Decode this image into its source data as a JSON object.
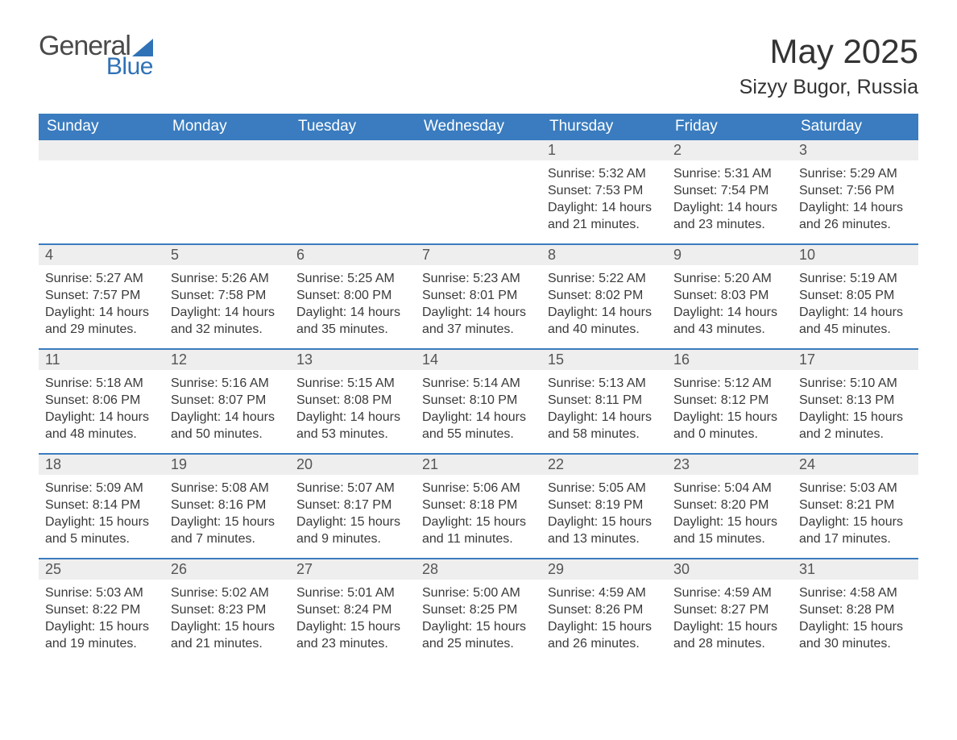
{
  "logo": {
    "text1": "General",
    "text2": "Blue"
  },
  "title": "May 2025",
  "location": "Sizyy Bugor, Russia",
  "colors": {
    "header_bg": "#3a7cbf",
    "header_text": "#ffffff",
    "daynum_bg": "#eeeeee",
    "body_text": "#3a3a3a",
    "accent": "#2f72b6",
    "page_bg": "#ffffff"
  },
  "weekdays": [
    "Sunday",
    "Monday",
    "Tuesday",
    "Wednesday",
    "Thursday",
    "Friday",
    "Saturday"
  ],
  "labels": {
    "sunrise": "Sunrise:",
    "sunset": "Sunset:",
    "daylight": "Daylight:"
  },
  "weeks": [
    [
      null,
      null,
      null,
      null,
      {
        "n": "1",
        "sunrise": "5:32 AM",
        "sunset": "7:53 PM",
        "daylight": "14 hours and 21 minutes."
      },
      {
        "n": "2",
        "sunrise": "5:31 AM",
        "sunset": "7:54 PM",
        "daylight": "14 hours and 23 minutes."
      },
      {
        "n": "3",
        "sunrise": "5:29 AM",
        "sunset": "7:56 PM",
        "daylight": "14 hours and 26 minutes."
      }
    ],
    [
      {
        "n": "4",
        "sunrise": "5:27 AM",
        "sunset": "7:57 PM",
        "daylight": "14 hours and 29 minutes."
      },
      {
        "n": "5",
        "sunrise": "5:26 AM",
        "sunset": "7:58 PM",
        "daylight": "14 hours and 32 minutes."
      },
      {
        "n": "6",
        "sunrise": "5:25 AM",
        "sunset": "8:00 PM",
        "daylight": "14 hours and 35 minutes."
      },
      {
        "n": "7",
        "sunrise": "5:23 AM",
        "sunset": "8:01 PM",
        "daylight": "14 hours and 37 minutes."
      },
      {
        "n": "8",
        "sunrise": "5:22 AM",
        "sunset": "8:02 PM",
        "daylight": "14 hours and 40 minutes."
      },
      {
        "n": "9",
        "sunrise": "5:20 AM",
        "sunset": "8:03 PM",
        "daylight": "14 hours and 43 minutes."
      },
      {
        "n": "10",
        "sunrise": "5:19 AM",
        "sunset": "8:05 PM",
        "daylight": "14 hours and 45 minutes."
      }
    ],
    [
      {
        "n": "11",
        "sunrise": "5:18 AM",
        "sunset": "8:06 PM",
        "daylight": "14 hours and 48 minutes."
      },
      {
        "n": "12",
        "sunrise": "5:16 AM",
        "sunset": "8:07 PM",
        "daylight": "14 hours and 50 minutes."
      },
      {
        "n": "13",
        "sunrise": "5:15 AM",
        "sunset": "8:08 PM",
        "daylight": "14 hours and 53 minutes."
      },
      {
        "n": "14",
        "sunrise": "5:14 AM",
        "sunset": "8:10 PM",
        "daylight": "14 hours and 55 minutes."
      },
      {
        "n": "15",
        "sunrise": "5:13 AM",
        "sunset": "8:11 PM",
        "daylight": "14 hours and 58 minutes."
      },
      {
        "n": "16",
        "sunrise": "5:12 AM",
        "sunset": "8:12 PM",
        "daylight": "15 hours and 0 minutes."
      },
      {
        "n": "17",
        "sunrise": "5:10 AM",
        "sunset": "8:13 PM",
        "daylight": "15 hours and 2 minutes."
      }
    ],
    [
      {
        "n": "18",
        "sunrise": "5:09 AM",
        "sunset": "8:14 PM",
        "daylight": "15 hours and 5 minutes."
      },
      {
        "n": "19",
        "sunrise": "5:08 AM",
        "sunset": "8:16 PM",
        "daylight": "15 hours and 7 minutes."
      },
      {
        "n": "20",
        "sunrise": "5:07 AM",
        "sunset": "8:17 PM",
        "daylight": "15 hours and 9 minutes."
      },
      {
        "n": "21",
        "sunrise": "5:06 AM",
        "sunset": "8:18 PM",
        "daylight": "15 hours and 11 minutes."
      },
      {
        "n": "22",
        "sunrise": "5:05 AM",
        "sunset": "8:19 PM",
        "daylight": "15 hours and 13 minutes."
      },
      {
        "n": "23",
        "sunrise": "5:04 AM",
        "sunset": "8:20 PM",
        "daylight": "15 hours and 15 minutes."
      },
      {
        "n": "24",
        "sunrise": "5:03 AM",
        "sunset": "8:21 PM",
        "daylight": "15 hours and 17 minutes."
      }
    ],
    [
      {
        "n": "25",
        "sunrise": "5:03 AM",
        "sunset": "8:22 PM",
        "daylight": "15 hours and 19 minutes."
      },
      {
        "n": "26",
        "sunrise": "5:02 AM",
        "sunset": "8:23 PM",
        "daylight": "15 hours and 21 minutes."
      },
      {
        "n": "27",
        "sunrise": "5:01 AM",
        "sunset": "8:24 PM",
        "daylight": "15 hours and 23 minutes."
      },
      {
        "n": "28",
        "sunrise": "5:00 AM",
        "sunset": "8:25 PM",
        "daylight": "15 hours and 25 minutes."
      },
      {
        "n": "29",
        "sunrise": "4:59 AM",
        "sunset": "8:26 PM",
        "daylight": "15 hours and 26 minutes."
      },
      {
        "n": "30",
        "sunrise": "4:59 AM",
        "sunset": "8:27 PM",
        "daylight": "15 hours and 28 minutes."
      },
      {
        "n": "31",
        "sunrise": "4:58 AM",
        "sunset": "8:28 PM",
        "daylight": "15 hours and 30 minutes."
      }
    ]
  ]
}
